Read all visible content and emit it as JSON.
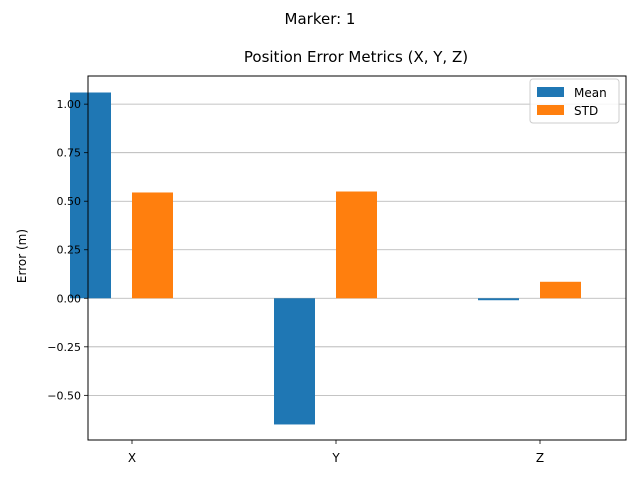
{
  "suptitle": "Marker: 1",
  "chart_data": {
    "type": "bar",
    "title": "Position Error Metrics (X, Y, Z)",
    "xlabel": "",
    "ylabel": "Error (m)",
    "categories": [
      "X",
      "Y",
      "Z"
    ],
    "series": [
      {
        "name": "Mean",
        "values": [
          1.06,
          -0.65,
          -0.01
        ],
        "color": "#1f77b4"
      },
      {
        "name": "STD",
        "values": [
          0.545,
          0.55,
          0.085
        ],
        "color": "#ff7f0e"
      }
    ],
    "ylim": [
      -0.73,
      1.145
    ],
    "yticks": [
      -0.5,
      -0.25,
      0.0,
      0.25,
      0.5,
      0.75,
      1.0
    ],
    "ytick_labels": [
      "−0.50",
      "−0.25",
      "0.00",
      "0.25",
      "0.50",
      "0.75",
      "1.00"
    ],
    "grid": "y",
    "legend": "top-right"
  }
}
